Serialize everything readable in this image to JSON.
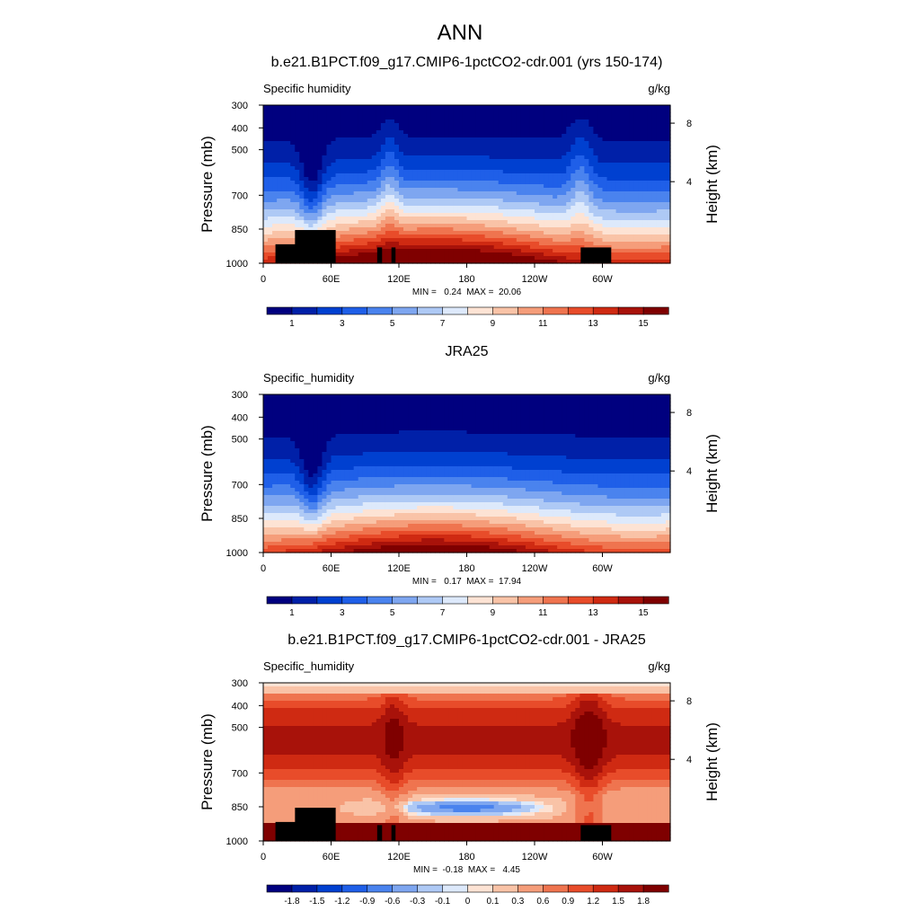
{
  "title": "ANN",
  "colors": {
    "cmap": [
      "#00007f",
      "#0020a8",
      "#0040d0",
      "#1f5fe8",
      "#4a83ee",
      "#7ea6f0",
      "#aec9f5",
      "#dde9fb",
      "#fde3d4",
      "#f9c3a7",
      "#f59d7a",
      "#ef744f",
      "#e84c2a",
      "#cf2a12",
      "#a8120a",
      "#7f0000"
    ]
  },
  "chart_data": [
    {
      "type": "heatmap",
      "id": "p1",
      "title": "b.e21.B1PCT.f09_g17.CMIP6-1pctCO2-cdr.001 (yrs 150-174)",
      "left_label": "Specific humidity",
      "right_label": "g/kg",
      "ylabel": "Pressure (mb)",
      "y2label": "Height (km)",
      "yticks": [
        "300",
        "400",
        "500",
        "700",
        "850",
        "1000"
      ],
      "y2ticks": [
        "8",
        "4"
      ],
      "xticks": [
        "0",
        "60E",
        "120E",
        "180",
        "120W",
        "60W"
      ],
      "stats": "MIN =   0.24  MAX =  20.06",
      "colorbar_labels": [
        "1",
        "3",
        "5",
        "7",
        "9",
        "11",
        "13",
        "15"
      ],
      "xlim": [
        0,
        360
      ],
      "levels": [
        1,
        2,
        3,
        4,
        5,
        6,
        7,
        8,
        9,
        10,
        11,
        12,
        13,
        14,
        15
      ],
      "min": 0.24,
      "max": 20.06
    },
    {
      "type": "heatmap",
      "id": "p2",
      "title": "JRA25",
      "left_label": "Specific_humidity",
      "right_label": "g/kg",
      "ylabel": "Pressure (mb)",
      "y2label": "Height (km)",
      "yticks": [
        "300",
        "400",
        "500",
        "700",
        "850",
        "1000"
      ],
      "y2ticks": [
        "8",
        "4"
      ],
      "xticks": [
        "0",
        "60E",
        "120E",
        "180",
        "120W",
        "60W"
      ],
      "stats": "MIN =   0.17  MAX =  17.94",
      "colorbar_labels": [
        "1",
        "3",
        "5",
        "7",
        "9",
        "11",
        "13",
        "15"
      ],
      "xlim": [
        0,
        360
      ],
      "levels": [
        1,
        2,
        3,
        4,
        5,
        6,
        7,
        8,
        9,
        10,
        11,
        12,
        13,
        14,
        15
      ],
      "min": 0.17,
      "max": 17.94
    },
    {
      "type": "heatmap",
      "id": "p3",
      "title": "b.e21.B1PCT.f09_g17.CMIP6-1pctCO2-cdr.001 - JRA25",
      "left_label": "Specific_humidity",
      "right_label": "g/kg",
      "ylabel": "Pressure (mb)",
      "y2label": "Height (km)",
      "yticks": [
        "300",
        "400",
        "500",
        "700",
        "850",
        "1000"
      ],
      "y2ticks": [
        "8",
        "4"
      ],
      "xticks": [
        "0",
        "60E",
        "120E",
        "180",
        "120W",
        "60W"
      ],
      "stats": "MIN =  -0.18  MAX =   4.45",
      "colorbar_labels": [
        "-1.8",
        "-1.5",
        "-1.2",
        "-0.9",
        "-0.6",
        "-0.3",
        "-0.1",
        "0",
        "0.1",
        "0.3",
        "0.6",
        "0.9",
        "1.2",
        "1.5",
        "1.8"
      ],
      "xlim": [
        0,
        360
      ],
      "levels": [
        -1.8,
        -1.5,
        -1.2,
        -0.9,
        -0.6,
        -0.3,
        -0.1,
        0,
        0.1,
        0.3,
        0.6,
        0.9,
        1.2,
        1.5,
        1.8
      ],
      "min": -0.18,
      "max": 4.45
    }
  ]
}
